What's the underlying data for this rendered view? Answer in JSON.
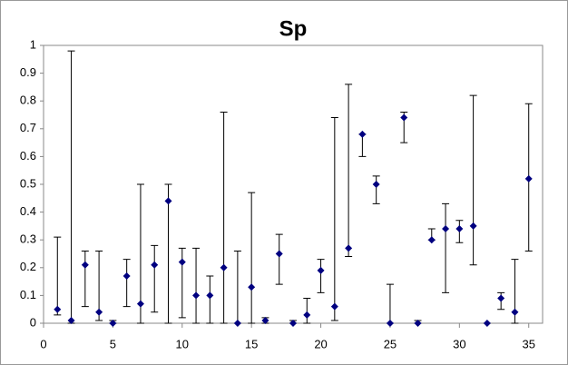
{
  "chart_data": {
    "type": "scatter",
    "title": "Sp",
    "x": [
      1,
      2,
      3,
      4,
      5,
      6,
      7,
      8,
      9,
      10,
      11,
      12,
      13,
      14,
      15,
      16,
      17,
      18,
      19,
      20,
      21,
      22,
      23,
      24,
      25,
      26,
      27,
      28,
      29,
      30,
      31,
      32,
      33,
      34,
      35
    ],
    "series": [
      {
        "color": "#000080",
        "values": [
          0.05,
          0.01,
          0.21,
          0.04,
          0.0,
          0.17,
          0.07,
          0.21,
          0.44,
          0.22,
          0.1,
          0.1,
          0.2,
          0.0,
          0.13,
          0.01,
          0.25,
          0.0,
          0.03,
          0.19,
          0.06,
          0.27,
          0.68,
          0.5,
          0.0,
          0.74,
          0.0,
          0.3,
          0.34,
          0.34,
          0.35,
          0.0,
          0.09,
          0.04,
          0.52
        ],
        "lower": [
          0.03,
          0.0,
          0.06,
          0.01,
          0.0,
          0.06,
          0.0,
          0.04,
          0.0,
          0.02,
          0.0,
          0.0,
          0.0,
          0.0,
          0.0,
          0.0,
          0.14,
          0.0,
          0.0,
          0.11,
          0.01,
          0.24,
          0.6,
          0.43,
          0.0,
          0.65,
          0.0,
          0.3,
          0.11,
          0.29,
          0.21,
          0.0,
          0.05,
          0.0,
          0.26
        ],
        "upper": [
          0.31,
          0.98,
          0.26,
          0.26,
          0.01,
          0.23,
          0.5,
          0.28,
          0.5,
          0.27,
          0.27,
          0.17,
          0.76,
          0.26,
          0.47,
          0.02,
          0.32,
          0.01,
          0.09,
          0.23,
          0.74,
          0.86,
          0.68,
          0.53,
          0.14,
          0.76,
          0.01,
          0.34,
          0.43,
          0.37,
          0.82,
          0.0,
          0.11,
          0.23,
          0.79
        ]
      }
    ],
    "xlim": [
      0,
      36
    ],
    "xticks": [
      0,
      5,
      10,
      15,
      20,
      25,
      30,
      35
    ],
    "ylim": [
      0,
      1
    ],
    "yticks": [
      0,
      0.1,
      0.2,
      0.3,
      0.4,
      0.5,
      0.6,
      0.7,
      0.8,
      0.9,
      1
    ],
    "grid": false
  }
}
